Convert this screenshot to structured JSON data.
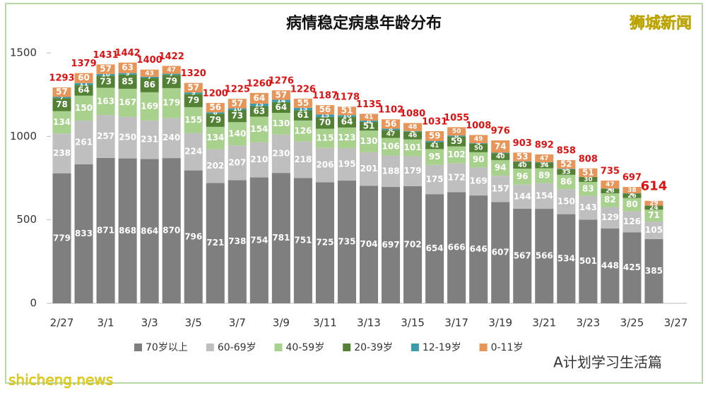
{
  "chart_data": {
    "type": "stacked-bar",
    "title": "病情稳定病患年龄分布",
    "watermark": "狮城新闻",
    "source": "shicheng.news",
    "credit": "A计划学习生活篇",
    "categories": [
      "2/27",
      null,
      "3/1",
      null,
      "3/3",
      null,
      "3/5",
      null,
      "3/7",
      null,
      "3/9",
      null,
      "3/11",
      null,
      "3/13",
      null,
      "3/15",
      null,
      "3/17",
      null,
      "3/19",
      null,
      "3/21",
      null,
      "3/23",
      null,
      "3/25",
      null,
      "3/27"
    ],
    "series": [
      {
        "name": "70岁以上",
        "color": "#7f7f7f",
        "values": [
          779,
          833,
          871,
          868,
          864,
          870,
          796,
          721,
          738,
          754,
          781,
          751,
          725,
          735,
          704,
          697,
          702,
          654,
          666,
          646,
          607,
          567,
          566,
          534,
          501,
          448,
          425,
          385,
          null
        ]
      },
      {
        "name": "60-69岁",
        "color": "#bfbfbf",
        "values": [
          238,
          261,
          257,
          250,
          231,
          240,
          224,
          202,
          207,
          210,
          230,
          218,
          206,
          195,
          201,
          188,
          179,
          175,
          172,
          169,
          157,
          144,
          154,
          150,
          143,
          129,
          126,
          105,
          null
        ]
      },
      {
        "name": "40-59岁",
        "color": "#a9d18e",
        "values": [
          134,
          150,
          163,
          167,
          169,
          179,
          155,
          134,
          140,
          154,
          130,
          126,
          115,
          123,
          130,
          106,
          101,
          95,
          102,
          90,
          94,
          96,
          89,
          86,
          83,
          82,
          80,
          71,
          null
        ]
      },
      {
        "name": "20-39岁",
        "color": "#548235",
        "values": [
          78,
          64,
          73,
          85,
          86,
          79,
          79,
          79,
          73,
          63,
          64,
          61,
          70,
          64,
          51,
          47,
          46,
          41,
          59,
          50,
          40,
          40,
          34,
          33,
          30,
          28,
          26,
          24,
          null
        ]
      },
      {
        "name": "12-19岁",
        "color": "#3a9bab",
        "values": [
          7,
          11,
          10,
          9,
          7,
          7,
          9,
          8,
          10,
          15,
          14,
          15,
          15,
          10,
          8,
          8,
          4,
          7,
          6,
          4,
          4,
          3,
          2,
          3,
          0,
          1,
          2,
          0,
          null
        ]
      },
      {
        "name": "0-11岁",
        "color": "#e8955a",
        "values": [
          57,
          60,
          57,
          63,
          43,
          47,
          57,
          56,
          57,
          64,
          57,
          55,
          56,
          51,
          41,
          56,
          48,
          59,
          50,
          49,
          74,
          53,
          47,
          52,
          51,
          47,
          38,
          29,
          null
        ]
      }
    ],
    "totals": [
      1293,
      1379,
      1431,
      1442,
      1400,
      1422,
      1320,
      1200,
      1225,
      1260,
      1276,
      1226,
      1187,
      1178,
      1135,
      1102,
      1080,
      1031,
      1055,
      1008,
      976,
      903,
      892,
      858,
      808,
      735,
      697,
      614,
      null
    ],
    "ylim": [
      0,
      1500
    ],
    "yticks": [
      0,
      500,
      1000,
      1500
    ],
    "grid": false
  }
}
